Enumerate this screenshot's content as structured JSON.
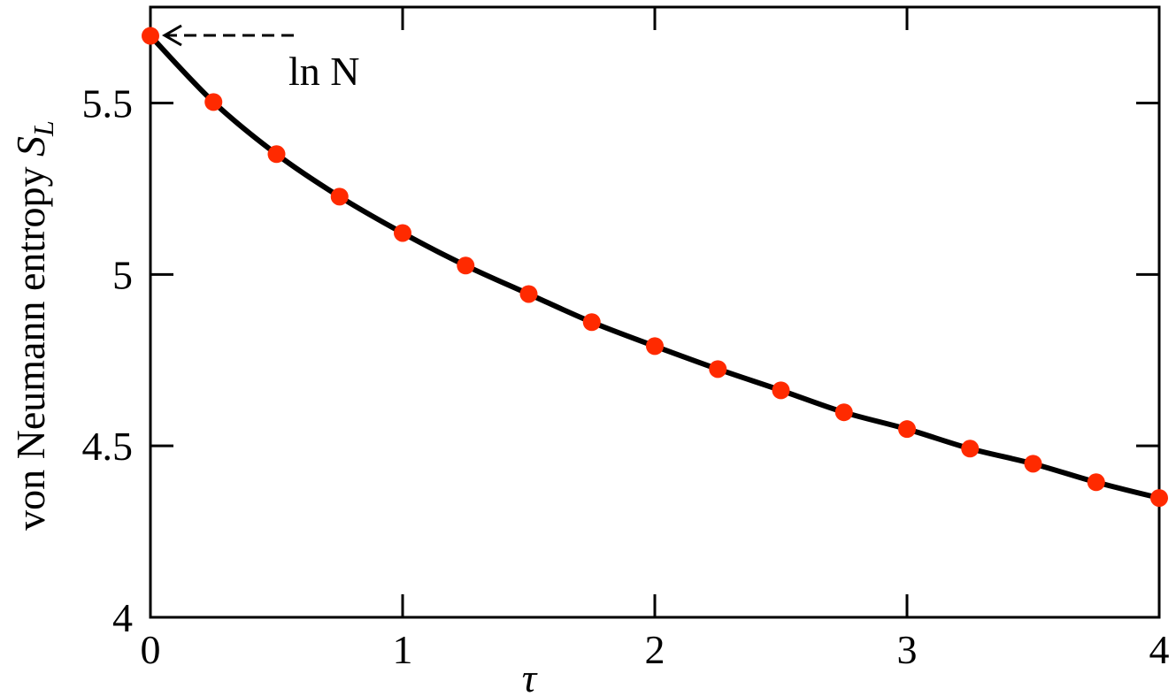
{
  "chart_data": {
    "type": "line",
    "x_label": "τ",
    "y_label": {
      "text": "von Neumann entropy ",
      "symbol": "S",
      "subscript": "L"
    },
    "annotation": "ln N",
    "x": [
      0,
      0.25,
      0.5,
      0.75,
      1,
      1.25,
      1.5,
      1.75,
      2,
      2.25,
      2.5,
      2.75,
      3,
      3.25,
      3.5,
      3.75,
      4
    ],
    "series": [
      {
        "color": "#ff2a00",
        "line_color": "#000000",
        "values": [
          5.696,
          5.503,
          5.351,
          5.227,
          5.121,
          5.026,
          4.943,
          4.861,
          4.791,
          4.724,
          4.662,
          4.598,
          4.549,
          4.492,
          4.448,
          4.394,
          4.348
        ]
      }
    ],
    "xlim": [
      0,
      4
    ],
    "ylim": [
      4,
      5.78
    ],
    "xticks": [
      0,
      1,
      2,
      3,
      4
    ],
    "yticks": [
      4,
      4.5,
      5,
      5.5
    ]
  }
}
